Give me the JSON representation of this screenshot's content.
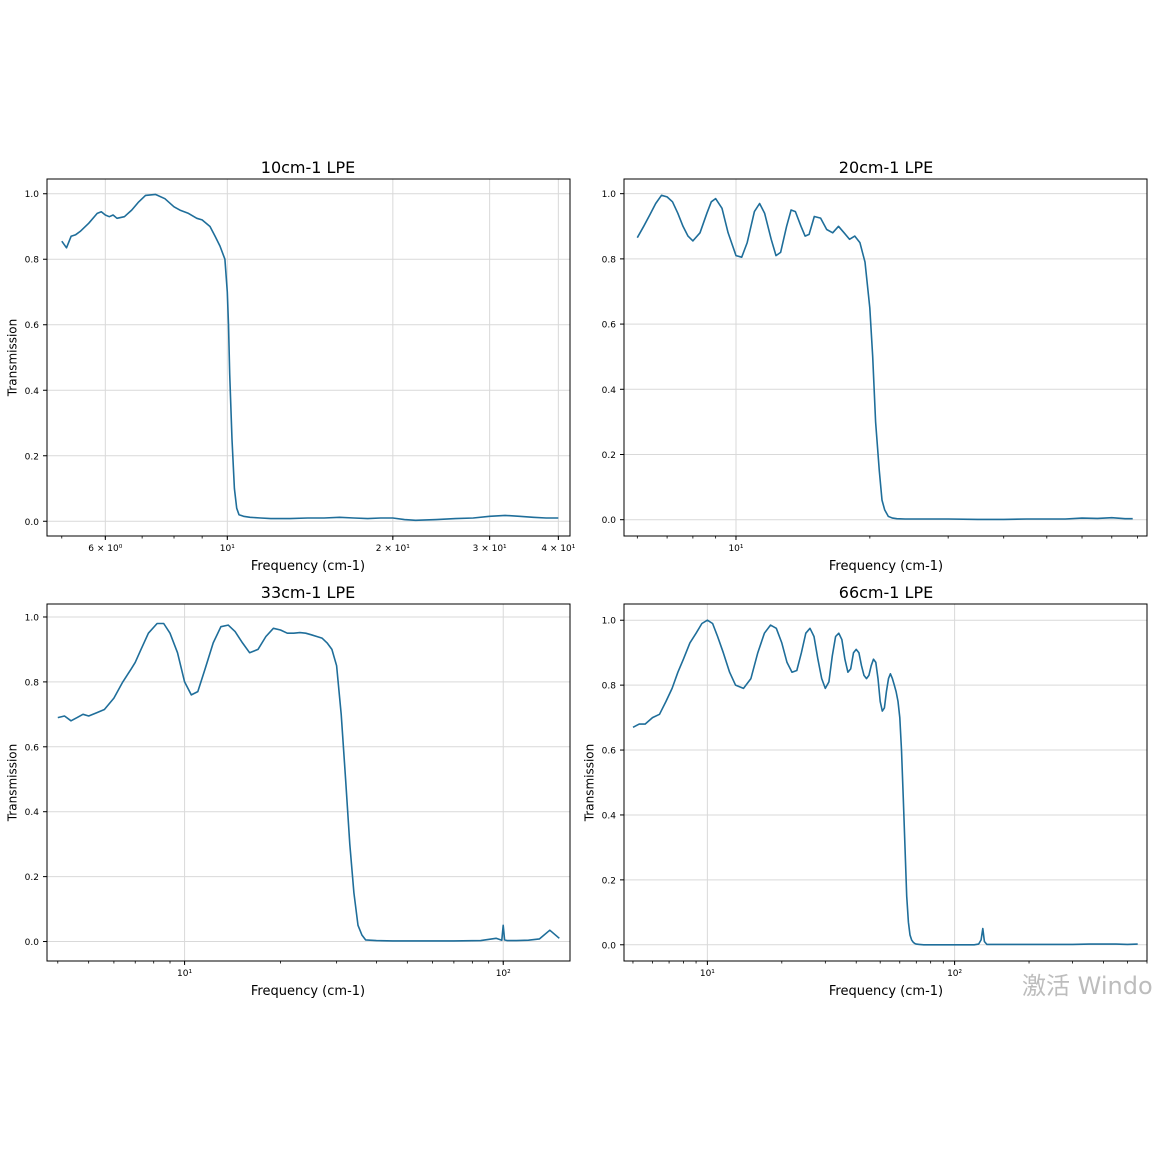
{
  "watermark": "激活 Windo",
  "chart_data": [
    {
      "type": "line",
      "title": "10cm-1 LPE",
      "xlabel": "Frequency (cm-1)",
      "ylabel": "Transmission",
      "xscale": "log",
      "xlim": [
        4.7,
        42
      ],
      "ylim": [
        -0.045,
        1.045
      ],
      "yticks": [
        0.0,
        0.2,
        0.4,
        0.6,
        0.8,
        1.0
      ],
      "ytick_labels": [
        "0.0",
        "0.2",
        "0.4",
        "0.6",
        "0.8",
        "1.0"
      ],
      "xticks": [
        6,
        10,
        20,
        30,
        40
      ],
      "xtick_labels": [
        "6 × 10⁰",
        "10¹",
        "2 × 10¹",
        "3 × 10¹",
        "4 × 10¹"
      ],
      "grid": true,
      "color": "#1f6e9a",
      "x": [
        5.0,
        5.1,
        5.2,
        5.3,
        5.4,
        5.6,
        5.8,
        5.9,
        6.0,
        6.1,
        6.2,
        6.3,
        6.5,
        6.7,
        6.9,
        7.1,
        7.4,
        7.7,
        8.0,
        8.2,
        8.5,
        8.8,
        9.0,
        9.3,
        9.5,
        9.7,
        9.9,
        10.0,
        10.05,
        10.1,
        10.2,
        10.3,
        10.4,
        10.5,
        10.7,
        11.0,
        11.5,
        12.0,
        13.0,
        14.0,
        15.0,
        16.0,
        17.0,
        18.0,
        19.0,
        20.0,
        21.0,
        22.0,
        24.0,
        26.0,
        28.0,
        30.0,
        32.0,
        34.0,
        36.0,
        38.0,
        40.0
      ],
      "y": [
        0.855,
        0.835,
        0.87,
        0.875,
        0.885,
        0.91,
        0.94,
        0.945,
        0.935,
        0.93,
        0.935,
        0.925,
        0.93,
        0.95,
        0.975,
        0.995,
        0.998,
        0.985,
        0.96,
        0.95,
        0.94,
        0.925,
        0.92,
        0.9,
        0.87,
        0.84,
        0.8,
        0.7,
        0.6,
        0.45,
        0.25,
        0.1,
        0.04,
        0.02,
        0.015,
        0.012,
        0.01,
        0.008,
        0.008,
        0.01,
        0.01,
        0.012,
        0.01,
        0.008,
        0.01,
        0.01,
        0.005,
        0.003,
        0.005,
        0.008,
        0.01,
        0.015,
        0.018,
        0.015,
        0.012,
        0.01,
        0.01
      ]
    },
    {
      "type": "line",
      "title": "20cm-1 LPE",
      "xlabel": "Frequency (cm-1)",
      "ylabel": "",
      "xscale": "log",
      "xlim": [
        5.6,
        84
      ],
      "ylim": [
        -0.05,
        1.045
      ],
      "yticks": [
        0.0,
        0.2,
        0.4,
        0.6,
        0.8,
        1.0
      ],
      "ytick_labels": [
        "0.0",
        "0.2",
        "0.4",
        "0.6",
        "0.8",
        "1.0"
      ],
      "xticks": [
        10
      ],
      "xtick_labels": [
        "10¹"
      ],
      "grid": true,
      "color": "#1f6e9a",
      "x": [
        6.0,
        6.2,
        6.4,
        6.6,
        6.8,
        7.0,
        7.2,
        7.4,
        7.6,
        7.8,
        8.0,
        8.3,
        8.6,
        8.8,
        9.0,
        9.3,
        9.6,
        10.0,
        10.3,
        10.6,
        11.0,
        11.3,
        11.6,
        12.0,
        12.3,
        12.6,
        13.0,
        13.3,
        13.6,
        14.0,
        14.3,
        14.6,
        15.0,
        15.5,
        16.0,
        16.5,
        17.0,
        17.5,
        18.0,
        18.5,
        19.0,
        19.5,
        20.0,
        20.3,
        20.6,
        21.0,
        21.3,
        21.6,
        22.0,
        22.5,
        23.0,
        24.0,
        26.0,
        30.0,
        35.0,
        40.0,
        45.0,
        50.0,
        55.0,
        60.0,
        65.0,
        70.0,
        75.0,
        78.0
      ],
      "y": [
        0.865,
        0.9,
        0.935,
        0.97,
        0.995,
        0.99,
        0.975,
        0.94,
        0.9,
        0.87,
        0.855,
        0.88,
        0.94,
        0.975,
        0.985,
        0.955,
        0.88,
        0.81,
        0.805,
        0.85,
        0.945,
        0.97,
        0.94,
        0.86,
        0.81,
        0.82,
        0.9,
        0.95,
        0.945,
        0.9,
        0.87,
        0.875,
        0.93,
        0.925,
        0.89,
        0.88,
        0.9,
        0.88,
        0.86,
        0.87,
        0.85,
        0.79,
        0.65,
        0.5,
        0.3,
        0.15,
        0.06,
        0.03,
        0.01,
        0.005,
        0.003,
        0.002,
        0.002,
        0.002,
        0.001,
        0.001,
        0.002,
        0.002,
        0.002,
        0.005,
        0.004,
        0.006,
        0.003,
        0.003
      ]
    },
    {
      "type": "line",
      "title": "33cm-1 LPE",
      "xlabel": "Frequency (cm-1)",
      "ylabel": "Transmission",
      "xscale": "log",
      "xlim": [
        3.7,
        162
      ],
      "ylim": [
        -0.06,
        1.04
      ],
      "yticks": [
        0.0,
        0.2,
        0.4,
        0.6,
        0.8,
        1.0
      ],
      "ytick_labels": [
        "0.0",
        "0.2",
        "0.4",
        "0.6",
        "0.8",
        "1.0"
      ],
      "xticks": [
        10,
        100
      ],
      "xtick_labels": [
        "10¹",
        "10²"
      ],
      "grid": true,
      "color": "#1f6e9a",
      "x": [
        4.0,
        4.2,
        4.4,
        4.6,
        4.8,
        5.0,
        5.3,
        5.6,
        6.0,
        6.4,
        6.8,
        7.0,
        7.3,
        7.7,
        8.2,
        8.6,
        9.0,
        9.5,
        10.0,
        10.5,
        11.0,
        11.6,
        12.3,
        13.0,
        13.7,
        14.4,
        15.2,
        16.0,
        17.0,
        18.0,
        19.0,
        20.0,
        21.0,
        22.0,
        23.0,
        24.0,
        25.0,
        26.0,
        27.0,
        28.0,
        29.0,
        30.0,
        31.0,
        32.0,
        33.0,
        34.0,
        35.0,
        36.0,
        37.0,
        40.0,
        45.0,
        55.0,
        70.0,
        85.0,
        95.0,
        99.0,
        100.0,
        101.0,
        103.0,
        110.0,
        120.0,
        130.0,
        140.0,
        150.0
      ],
      "y": [
        0.69,
        0.695,
        0.68,
        0.69,
        0.7,
        0.695,
        0.705,
        0.715,
        0.75,
        0.8,
        0.84,
        0.86,
        0.9,
        0.95,
        0.98,
        0.98,
        0.95,
        0.89,
        0.8,
        0.76,
        0.77,
        0.84,
        0.92,
        0.97,
        0.975,
        0.955,
        0.92,
        0.89,
        0.9,
        0.94,
        0.965,
        0.96,
        0.95,
        0.95,
        0.952,
        0.95,
        0.945,
        0.94,
        0.935,
        0.92,
        0.9,
        0.85,
        0.7,
        0.5,
        0.3,
        0.15,
        0.05,
        0.02,
        0.005,
        0.003,
        0.002,
        0.002,
        0.002,
        0.003,
        0.01,
        0.004,
        0.05,
        0.005,
        0.003,
        0.003,
        0.004,
        0.008,
        0.035,
        0.01
      ]
    },
    {
      "type": "line",
      "title": "66cm-1 LPE",
      "xlabel": "Frequency (cm-1)",
      "ylabel": "Transmission",
      "xscale": "log",
      "xlim": [
        4.6,
        600
      ],
      "ylim": [
        -0.05,
        1.05
      ],
      "yticks": [
        0.0,
        0.2,
        0.4,
        0.6,
        0.8,
        1.0
      ],
      "ytick_labels": [
        "0.0",
        "0.2",
        "0.4",
        "0.6",
        "0.8",
        "1.0"
      ],
      "xticks": [
        10,
        100
      ],
      "xtick_labels": [
        "10¹",
        "10²"
      ],
      "grid": true,
      "color": "#1f6e9a",
      "x": [
        5.0,
        5.3,
        5.6,
        6.0,
        6.4,
        6.8,
        7.2,
        7.6,
        8.0,
        8.5,
        9.0,
        9.5,
        10.0,
        10.5,
        11.0,
        11.6,
        12.3,
        13.0,
        14.0,
        15.0,
        16.0,
        17.0,
        18.0,
        19.0,
        20.0,
        21.0,
        22.0,
        23.0,
        24.0,
        25.0,
        26.0,
        27.0,
        28.0,
        29.0,
        30.0,
        31.0,
        32.0,
        33.0,
        34.0,
        35.0,
        36.0,
        37.0,
        38.0,
        39.0,
        40.0,
        41.0,
        42.0,
        43.0,
        44.0,
        45.0,
        46.0,
        47.0,
        48.0,
        49.0,
        50.0,
        51.0,
        52.0,
        53.0,
        54.0,
        55.0,
        56.0,
        57.0,
        58.0,
        59.0,
        60.0,
        61.0,
        62.0,
        63.0,
        64.0,
        65.0,
        66.0,
        67.0,
        68.0,
        69.0,
        70.0,
        72.0,
        75.0,
        80.0,
        90.0,
        100.0,
        110.0,
        120.0,
        125.0,
        128.0,
        130.0,
        132.0,
        135.0,
        150.0,
        200.0,
        250.0,
        300.0,
        350.0,
        400.0,
        450.0,
        500.0,
        550.0
      ],
      "y": [
        0.67,
        0.68,
        0.68,
        0.7,
        0.71,
        0.75,
        0.79,
        0.84,
        0.88,
        0.93,
        0.96,
        0.99,
        1.0,
        0.99,
        0.95,
        0.9,
        0.84,
        0.8,
        0.79,
        0.82,
        0.9,
        0.96,
        0.985,
        0.975,
        0.93,
        0.87,
        0.84,
        0.845,
        0.9,
        0.96,
        0.975,
        0.95,
        0.88,
        0.82,
        0.79,
        0.81,
        0.89,
        0.95,
        0.96,
        0.94,
        0.88,
        0.84,
        0.85,
        0.9,
        0.91,
        0.9,
        0.86,
        0.83,
        0.82,
        0.83,
        0.86,
        0.88,
        0.87,
        0.82,
        0.75,
        0.72,
        0.73,
        0.78,
        0.82,
        0.835,
        0.82,
        0.8,
        0.78,
        0.75,
        0.7,
        0.6,
        0.45,
        0.3,
        0.15,
        0.07,
        0.03,
        0.015,
        0.008,
        0.004,
        0.002,
        0.001,
        0.0,
        0.0,
        0.0,
        0.0,
        0.0,
        0.0,
        0.002,
        0.015,
        0.05,
        0.01,
        0.001,
        0.001,
        0.001,
        0.001,
        0.001,
        0.002,
        0.002,
        0.002,
        0.001,
        0.002
      ]
    }
  ]
}
